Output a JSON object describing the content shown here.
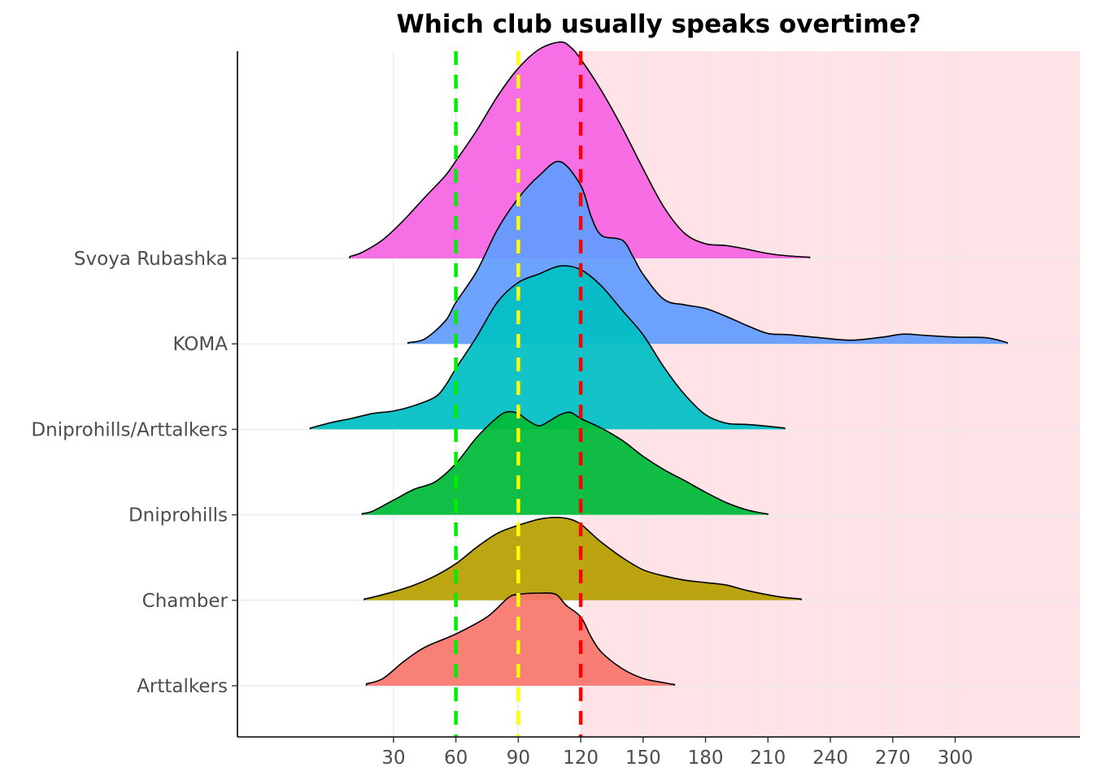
{
  "chart_data": {
    "type": "ridgeline",
    "title": "Which club usually speaks overtime?",
    "xlabel": "",
    "ylabel": "",
    "x_ticks": [
      30,
      60,
      90,
      120,
      150,
      180,
      210,
      240,
      270,
      300
    ],
    "xlim": [
      -45,
      360
    ],
    "overtime_region_start": 120,
    "overtime_region_color": "#ffe3e6",
    "reference_lines": [
      {
        "x": 60,
        "color": "#00ee00"
      },
      {
        "x": 90,
        "color": "#ffff00"
      },
      {
        "x": 120,
        "color": "#ff0000"
      }
    ],
    "categories": [
      "Arttalkers",
      "Chamber",
      "Dniprohills",
      "Dniprohills/Arttalkers",
      "KOMA",
      "Svoya Rubashka"
    ],
    "series": [
      {
        "name": "Arttalkers",
        "color": "#f8766d",
        "x": [
          17,
          25,
          35,
          45,
          60,
          75,
          85,
          90,
          100,
          108,
          113,
          120,
          125,
          130,
          140,
          150,
          160,
          165
        ],
        "density": [
          0.03,
          0.12,
          0.4,
          0.63,
          0.85,
          1.13,
          1.44,
          1.5,
          1.52,
          1.5,
          1.32,
          1.13,
          0.8,
          0.55,
          0.28,
          0.12,
          0.05,
          0.02
        ]
      },
      {
        "name": "Chamber",
        "color": "#b79f00",
        "x": [
          16,
          20,
          30,
          40,
          50,
          60,
          70,
          80,
          90,
          100,
          108,
          115,
          120,
          125,
          130,
          140,
          150,
          160,
          170,
          180,
          190,
          200,
          215,
          226
        ],
        "density": [
          0.02,
          0.05,
          0.14,
          0.25,
          0.4,
          0.6,
          0.87,
          1.1,
          1.23,
          1.33,
          1.36,
          1.33,
          1.25,
          1.1,
          0.95,
          0.7,
          0.5,
          0.4,
          0.33,
          0.29,
          0.25,
          0.16,
          0.06,
          0.02
        ]
      },
      {
        "name": "Dniprohills",
        "color": "#00ba38",
        "x": [
          15,
          20,
          30,
          40,
          50,
          60,
          70,
          80,
          85,
          90,
          95,
          100,
          105,
          110,
          115,
          120,
          130,
          140,
          150,
          160,
          170,
          180,
          190,
          200,
          210
        ],
        "density": [
          0.02,
          0.06,
          0.24,
          0.42,
          0.54,
          0.84,
          1.27,
          1.6,
          1.69,
          1.66,
          1.54,
          1.46,
          1.54,
          1.64,
          1.68,
          1.58,
          1.42,
          1.22,
          0.96,
          0.74,
          0.56,
          0.37,
          0.2,
          0.08,
          0.01
        ]
      },
      {
        "name": "Dniprohills/Arttalkers",
        "color": "#00bfc4",
        "x": [
          -10,
          0,
          10,
          20,
          30,
          40,
          50,
          55,
          60,
          70,
          80,
          90,
          100,
          110,
          120,
          130,
          140,
          150,
          160,
          170,
          180,
          190,
          200,
          210,
          218
        ],
        "density": [
          0.02,
          0.11,
          0.18,
          0.26,
          0.3,
          0.39,
          0.53,
          0.72,
          1.0,
          1.52,
          2.09,
          2.41,
          2.55,
          2.68,
          2.62,
          2.35,
          1.95,
          1.55,
          1.02,
          0.57,
          0.24,
          0.1,
          0.08,
          0.05,
          0.02
        ]
      },
      {
        "name": "KOMA",
        "color": "#619cff",
        "x": [
          37,
          45,
          55,
          60,
          70,
          80,
          90,
          100,
          110,
          120,
          125,
          130,
          140,
          145,
          150,
          160,
          170,
          180,
          190,
          200,
          210,
          220,
          235,
          250,
          265,
          275,
          285,
          300,
          315,
          325
        ],
        "density": [
          0.02,
          0.08,
          0.38,
          0.68,
          1.19,
          1.88,
          2.39,
          2.76,
          2.99,
          2.6,
          2.09,
          1.78,
          1.7,
          1.44,
          1.14,
          0.73,
          0.64,
          0.58,
          0.45,
          0.3,
          0.17,
          0.15,
          0.1,
          0.06,
          0.11,
          0.16,
          0.14,
          0.11,
          0.1,
          0.02
        ]
      },
      {
        "name": "Svoya Rubashka",
        "color": "#f564e3",
        "x": [
          9,
          15,
          25,
          35,
          45,
          55,
          60,
          70,
          80,
          90,
          100,
          110,
          115,
          120,
          130,
          140,
          150,
          160,
          170,
          180,
          190,
          200,
          210,
          220,
          230
        ],
        "density": [
          0.03,
          0.1,
          0.31,
          0.63,
          1.0,
          1.36,
          1.6,
          2.1,
          2.66,
          3.12,
          3.43,
          3.55,
          3.47,
          3.27,
          2.75,
          2.14,
          1.47,
          0.84,
          0.41,
          0.24,
          0.21,
          0.15,
          0.08,
          0.04,
          0.02
        ]
      }
    ]
  }
}
